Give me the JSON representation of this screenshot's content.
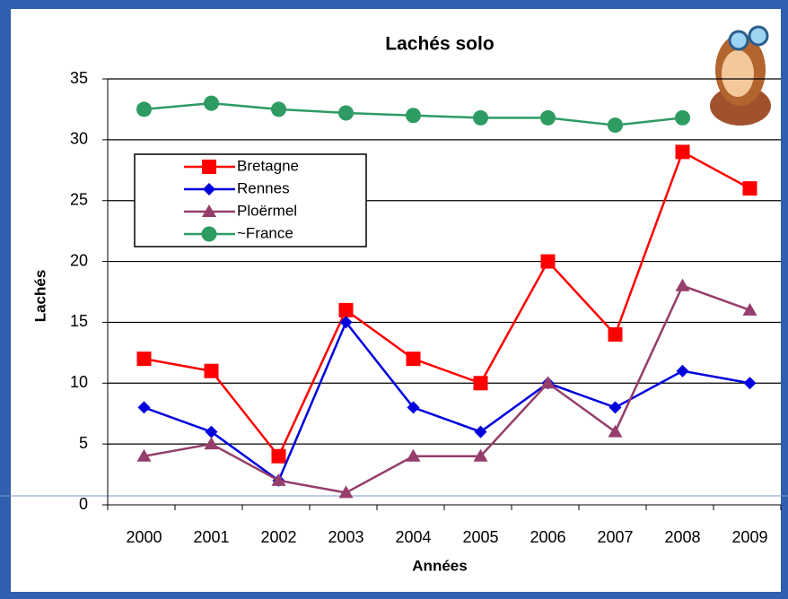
{
  "chart_data": {
    "type": "line",
    "title": "Lachés solo",
    "x_label": "Années",
    "y_label": "Lachés",
    "categories": [
      "2000",
      "2001",
      "2002",
      "2003",
      "2004",
      "2005",
      "2006",
      "2007",
      "2008",
      "2009"
    ],
    "series": [
      {
        "name": "Bretagne",
        "color": "#ff0000",
        "marker": "square",
        "values": [
          12,
          11,
          4,
          16,
          12,
          10,
          20,
          14,
          29,
          26
        ]
      },
      {
        "name": "Rennes",
        "color": "#0000dd",
        "marker": "diamond",
        "values": [
          8,
          6,
          2,
          15,
          8,
          6,
          10,
          8,
          11,
          10
        ]
      },
      {
        "name": "Ploërmel",
        "color": "#953e6b",
        "marker": "triangle",
        "values": [
          4,
          5,
          2,
          1,
          4,
          4,
          10,
          6,
          18,
          16
        ]
      },
      {
        "name": "~France",
        "color": "#2e9b62",
        "marker": "circle",
        "values": [
          32.5,
          33,
          32.5,
          32.2,
          32,
          31.8,
          31.8,
          31.2,
          31.8,
          null
        ]
      }
    ],
    "ylim": [
      0,
      35
    ],
    "yticks": [
      0,
      5,
      10,
      15,
      20,
      25,
      30,
      35
    ],
    "grid": true
  }
}
